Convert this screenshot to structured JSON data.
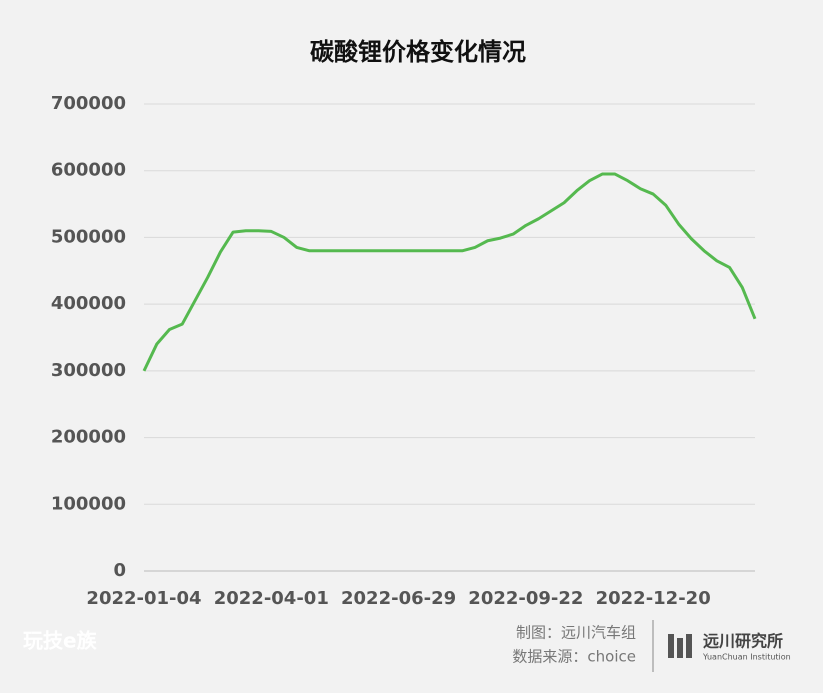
{
  "chart_data": {
    "type": "line",
    "title": "碳酸锂价格变化情况",
    "categories": [
      "2022-01-04",
      null,
      null,
      null,
      null,
      null,
      null,
      null,
      null,
      null,
      "2022-04-01",
      null,
      null,
      null,
      null,
      null,
      null,
      null,
      null,
      null,
      "2022-06-29",
      null,
      null,
      null,
      null,
      null,
      null,
      null,
      null,
      null,
      "2022-09-22",
      null,
      null,
      null,
      null,
      null,
      null,
      null,
      null,
      null,
      "2022-12-20",
      null,
      null,
      null,
      null,
      null,
      null,
      null,
      null
    ],
    "series": [
      {
        "name": "碳酸锂价格",
        "color": "#55b94f",
        "values": [
          300000,
          340000,
          362000,
          370000,
          405000,
          440000,
          478000,
          508000,
          510000,
          510000,
          509000,
          500000,
          485000,
          480000,
          480000,
          480000,
          480000,
          480000,
          480000,
          480000,
          480000,
          480000,
          480000,
          480000,
          480000,
          480000,
          485000,
          495000,
          499000,
          505000,
          518000,
          528000,
          540000,
          552000,
          570000,
          585000,
          595000,
          595000,
          585000,
          573000,
          565000,
          548000,
          520000,
          498000,
          480000,
          465000,
          455000,
          425000,
          378000
        ]
      }
    ],
    "ylim": [
      0,
      700000
    ],
    "yticks": [
      0,
      100000,
      200000,
      300000,
      400000,
      500000,
      600000,
      700000
    ],
    "grid": true
  },
  "footer": {
    "credit": "制图：远川汽车组",
    "source": "数据来源：choice",
    "logo": "远川研究所",
    "logo_sub": "YuanChuan Institution",
    "watermark": "玩技e族"
  }
}
